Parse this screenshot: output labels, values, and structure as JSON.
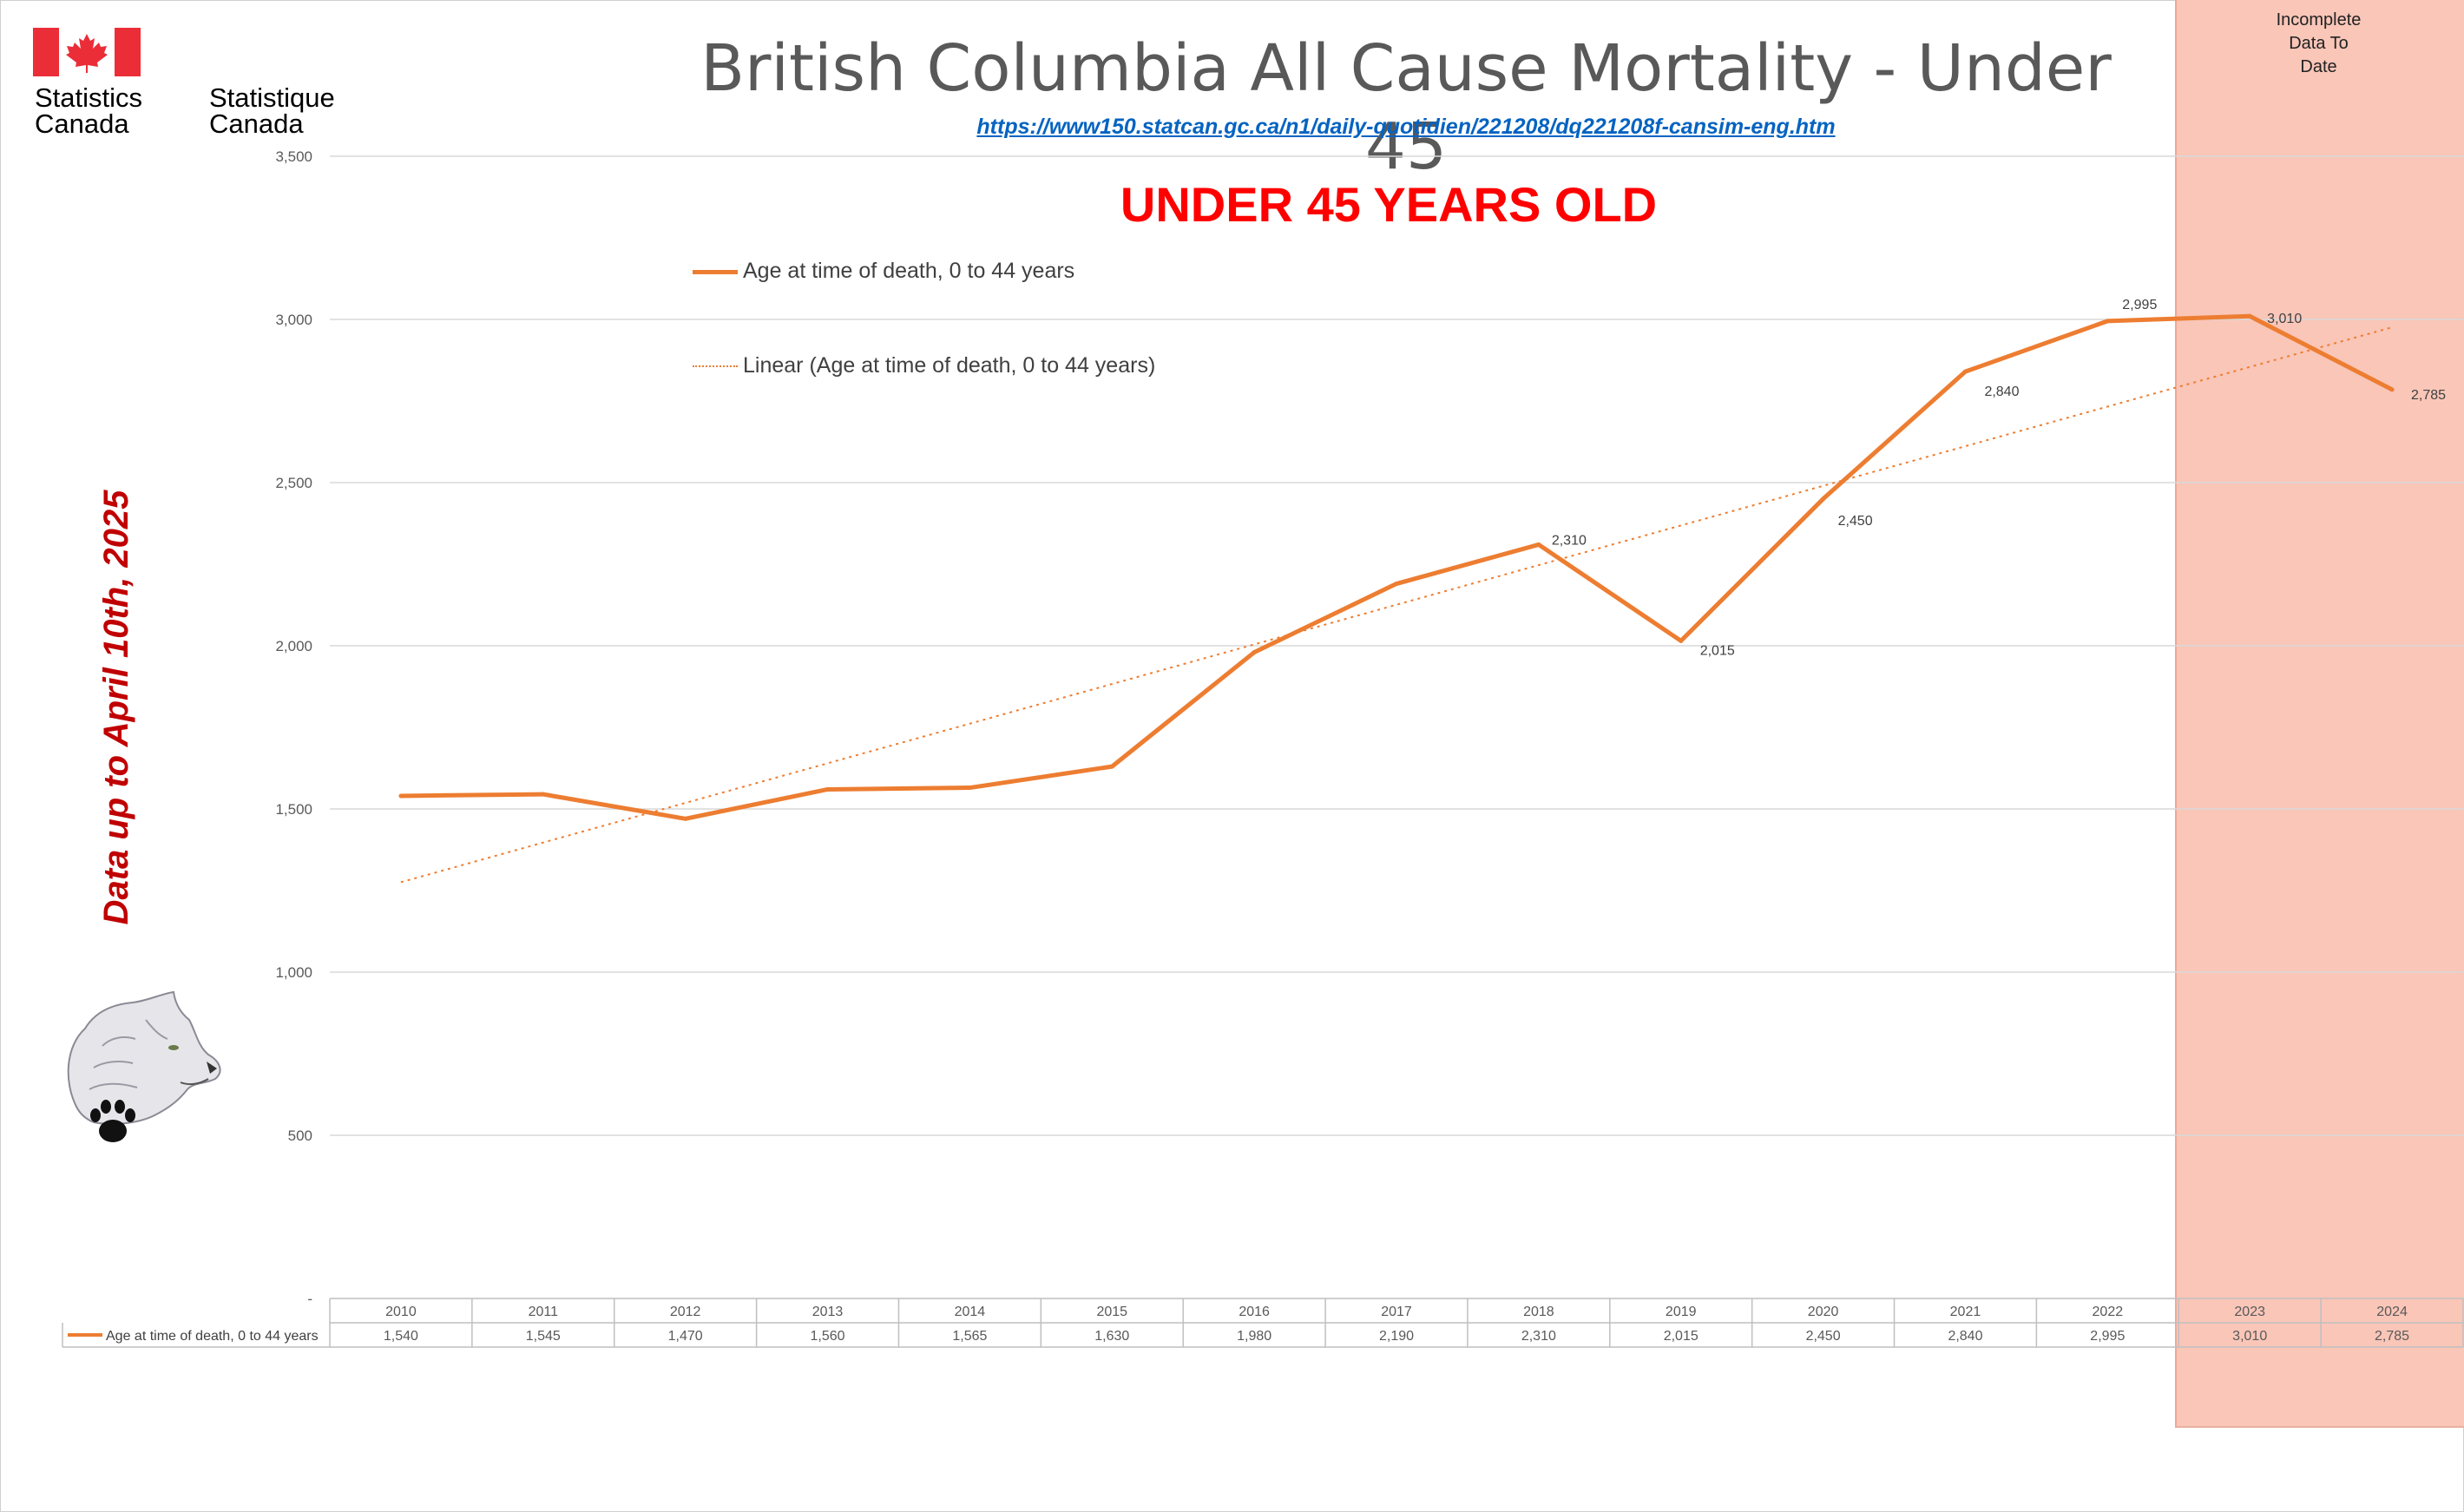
{
  "page": {
    "title": "British Columbia All Cause Mortality - Under 45",
    "source_url": "https://www150.statcan.gc.ca/n1/daily-quotidien/221208/dq221208f-cansim-eng.htm",
    "chart_heading": "UNDER 45 YEARS OLD",
    "side_note": "Data up to April 10th, 2025",
    "incomplete_label": "Incomplete\nData To\nDate",
    "logo": {
      "english": "Statistics\nCanada",
      "french": "Statistique\nCanada"
    }
  },
  "colors": {
    "series": "#ed7d31",
    "highlight_band": "#f9c6b8",
    "heading": "#ff0000",
    "side_note": "#c00000",
    "link": "#0563c1",
    "flag_red": "#eb2d37"
  },
  "icons": [
    "canada-flag-icon",
    "wolf-drawing-icon",
    "paw-print-icon"
  ],
  "chart_data": {
    "type": "line",
    "categories": [
      "2010",
      "2011",
      "2012",
      "2013",
      "2014",
      "2015",
      "2016",
      "2017",
      "2018",
      "2019",
      "2020",
      "2021",
      "2022",
      "2023",
      "2024"
    ],
    "series": [
      {
        "name": "Age at time of death, 0 to 44 years",
        "values": [
          1540,
          1545,
          1470,
          1560,
          1565,
          1630,
          1980,
          2190,
          2310,
          2015,
          2450,
          2840,
          2995,
          3010,
          2785
        ],
        "table_labels": [
          "1,540",
          "1,545",
          "1,470",
          "1,560",
          "1,565",
          "1,630",
          "1,980",
          "2,190",
          "2,310",
          "2,015",
          "2,450",
          "2,840",
          "2,995",
          "3,010",
          "2,785"
        ]
      }
    ],
    "trendline": {
      "name": "Linear (Age at time of death, 0 to 44 years)",
      "type": "linear",
      "style": "dotted"
    },
    "data_labels": [
      {
        "category": "2018",
        "text": "2,310"
      },
      {
        "category": "2019",
        "text": "2,015"
      },
      {
        "category": "2020",
        "text": "2,450"
      },
      {
        "category": "2021",
        "text": "2,840"
      },
      {
        "category": "2022",
        "text": "2,995"
      },
      {
        "category": "2023",
        "text": "3,010"
      },
      {
        "category": "2024",
        "text": "2,785"
      }
    ],
    "ylim": [
      0,
      3500
    ],
    "yticks": [
      {
        "value": 0,
        "label": "-"
      },
      {
        "value": 500,
        "label": "500"
      },
      {
        "value": 1000,
        "label": "1,000"
      },
      {
        "value": 1500,
        "label": "1,500"
      },
      {
        "value": 2000,
        "label": "2,000"
      },
      {
        "value": 2500,
        "label": "2,500"
      },
      {
        "value": 3000,
        "label": "3,000"
      },
      {
        "value": 3500,
        "label": "3,500"
      }
    ],
    "grid": true,
    "highlighted_categories": [
      "2023",
      "2024"
    ],
    "legend_position": "top-left",
    "data_table": true
  }
}
